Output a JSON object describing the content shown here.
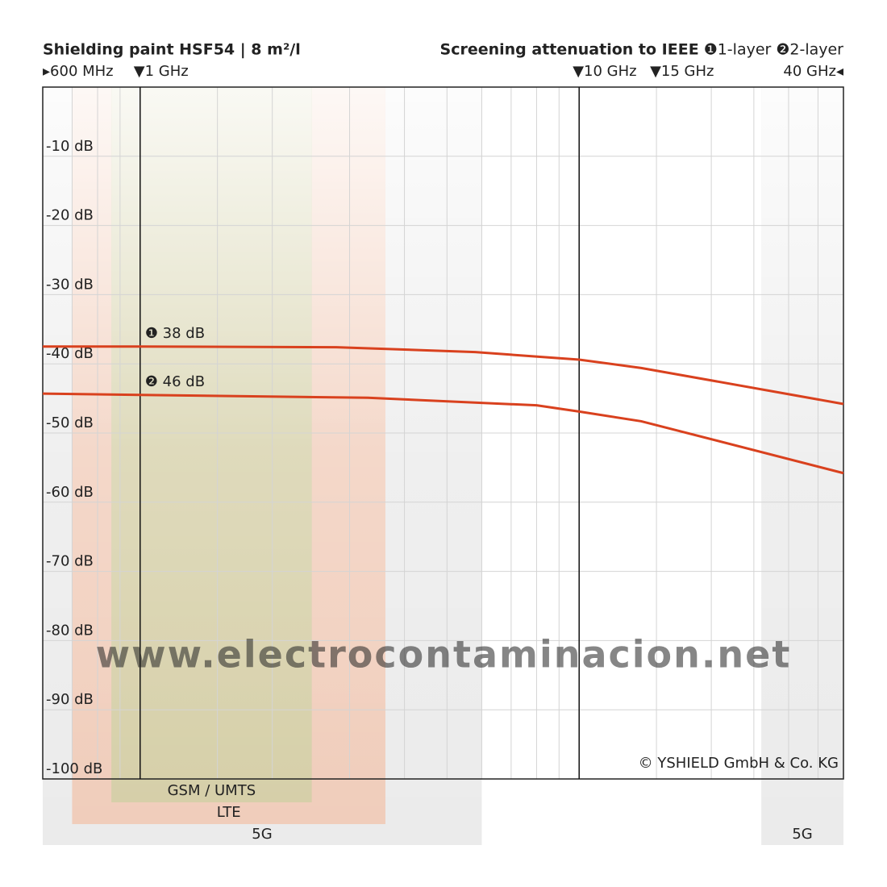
{
  "chart_data": {
    "type": "line",
    "title": "Shielding paint HSF54 | 8 m²/l",
    "legend_title": "Screening attenuation to IEEE",
    "xscale": "log",
    "xlim": [
      600,
      40000
    ],
    "xticks": [
      {
        "value": 600,
        "label": "▸600 MHz"
      },
      {
        "value": 1000,
        "label": "▼1 GHz"
      },
      {
        "value": 10000,
        "label": "▼10 GHz"
      },
      {
        "value": 15000,
        "label": "▼15 GHz"
      },
      {
        "value": 40000,
        "label": "40 GHz◂"
      }
    ],
    "xminor": [
      700,
      800,
      900,
      1500,
      2000,
      3000,
      4000,
      5000,
      6000,
      7000,
      8000,
      9000,
      20000,
      25000,
      30000,
      35000
    ],
    "reference_lines": [
      1000,
      10000
    ],
    "ylim": [
      -100,
      0
    ],
    "yticks": [
      {
        "value": -10,
        "label": "-10 dB"
      },
      {
        "value": -20,
        "label": "-20 dB"
      },
      {
        "value": -30,
        "label": "-30 dB"
      },
      {
        "value": -40,
        "label": "-40 dB"
      },
      {
        "value": -50,
        "label": "-50 dB"
      },
      {
        "value": -60,
        "label": "-60 dB"
      },
      {
        "value": -70,
        "label": "-70 dB"
      },
      {
        "value": -80,
        "label": "-80 dB"
      },
      {
        "value": -90,
        "label": "-90 dB"
      },
      {
        "value": -100,
        "label": "-100 dB"
      }
    ],
    "grid": true,
    "series": [
      {
        "name": "❶1-layer",
        "color": "#d9411e",
        "x": [
          600,
          1000,
          2800,
          5800,
          10000,
          13850,
          40000
        ],
        "values": [
          -37.5,
          -37.5,
          -37.6,
          -38.3,
          -39.4,
          -40.6,
          -45.8
        ]
      },
      {
        "name": "❷2-layer",
        "color": "#d9411e",
        "x": [
          600,
          1000,
          3300,
          8000,
          10000,
          13850,
          40000
        ],
        "values": [
          -44.3,
          -44.5,
          -44.9,
          -46.0,
          -46.9,
          -48.3,
          -55.8
        ]
      }
    ],
    "annotations": [
      "❶ 38 dB",
      "❷ 46 dB"
    ],
    "bands": [
      {
        "label": "5G",
        "range": [
          600,
          6000
        ],
        "color": "#e4e4e4"
      },
      {
        "label": "5G",
        "range": [
          26000,
          40000
        ],
        "color": "#e4e4e4"
      },
      {
        "label": "LTE",
        "range": [
          700,
          3620
        ],
        "color": "#f2c3ab"
      },
      {
        "label": "GSM / UMTS",
        "range": [
          860,
          2460
        ],
        "color": "#cfcfa4"
      }
    ],
    "watermark": "www.electrocontaminacion.net",
    "copyright": "© YSHIELD GmbH & Co. KG"
  }
}
